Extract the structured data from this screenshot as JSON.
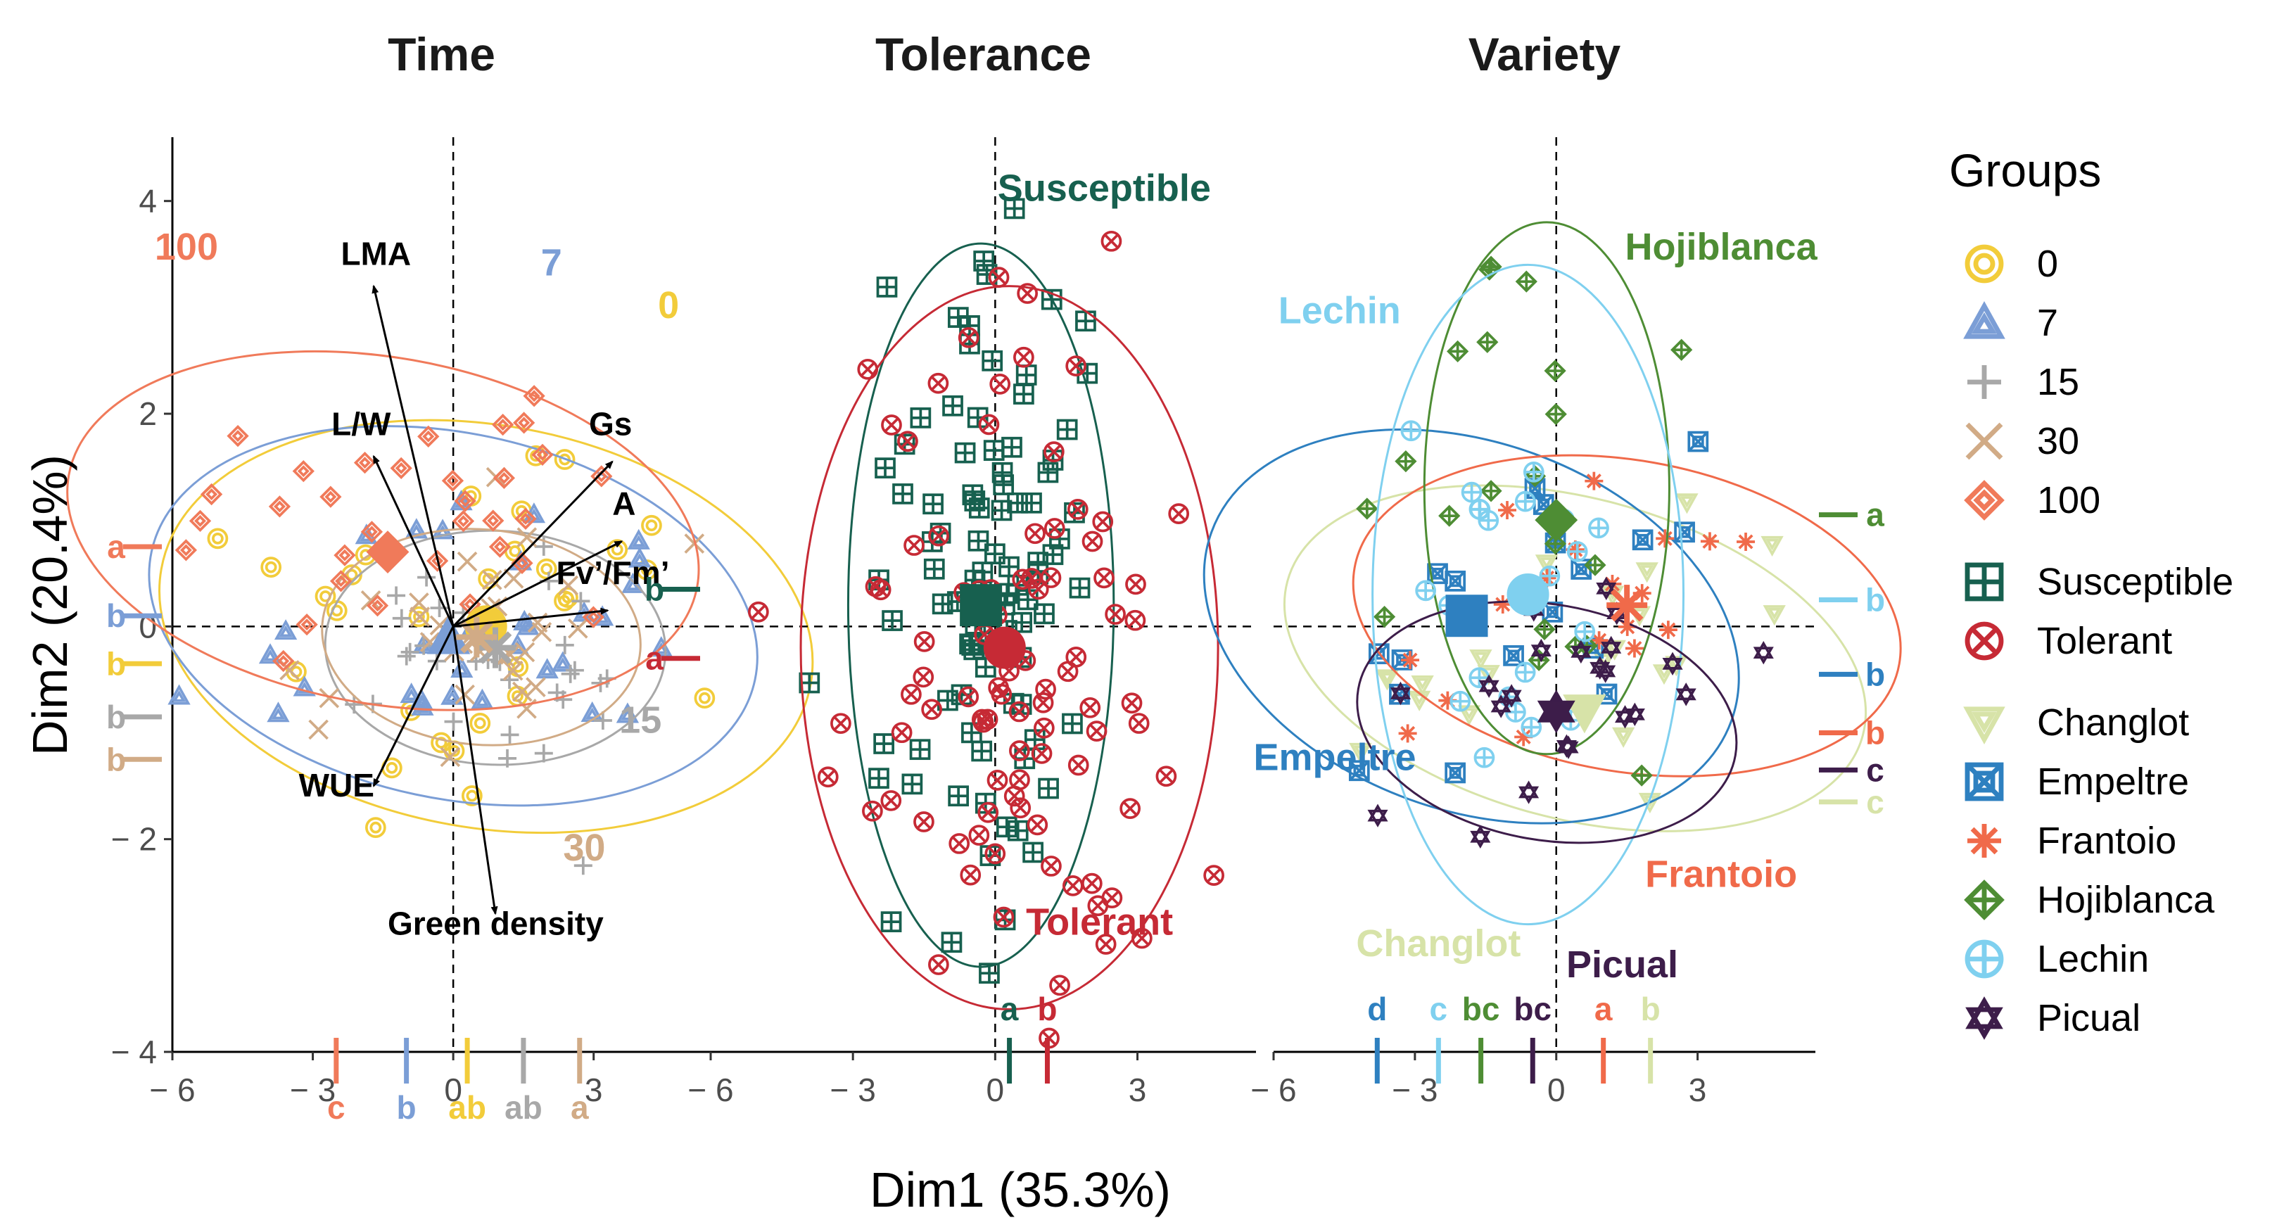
{
  "chart_data": {
    "type": "scatter",
    "title": "",
    "xlabel": "Dim1 (35.3%)",
    "ylabel": "Dim2 (20.4%)",
    "xlim": [
      -6,
      5.5
    ],
    "ylim": [
      -4,
      4.6
    ],
    "x_ticks": [
      {
        "label": "− 6",
        "v": -6
      },
      {
        "label": "− 3",
        "v": -3
      },
      {
        "label": "0",
        "v": 0
      },
      {
        "label": "3",
        "v": 3
      }
    ],
    "y_ticks": [
      {
        "label": "4",
        "v": 4
      },
      {
        "label": "2",
        "v": 2
      },
      {
        "label": "0",
        "v": 0
      },
      {
        "label": "− 2",
        "v": -2
      },
      {
        "label": "− 4",
        "v": -4
      }
    ],
    "panels": [
      {
        "id": "time",
        "title": "Time",
        "arrows": [
          {
            "label": "LMA",
            "x": -1.7,
            "y": 3.2,
            "lx": -2.4,
            "ly": 3.4
          },
          {
            "label": "L/W",
            "x": -1.7,
            "y": 1.6,
            "lx": -2.6,
            "ly": 1.8
          },
          {
            "label": "Gs",
            "x": 3.4,
            "y": 1.55,
            "lx": 2.9,
            "ly": 1.8
          },
          {
            "label": "A",
            "x": 3.6,
            "y": 0.8,
            "lx": 3.4,
            "ly": 1.05
          },
          {
            "label": "Fv’/Fm’",
            "x": 3.3,
            "y": 0.15,
            "lx": 2.2,
            "ly": 0.4
          },
          {
            "label": "WUE",
            "x": -1.7,
            "y": -1.5,
            "lx": -3.3,
            "ly": -1.6
          },
          {
            "label": "Green density",
            "x": 0.9,
            "y": -2.7,
            "lx": -1.4,
            "ly": -2.9
          }
        ],
        "groups": [
          {
            "name": "0",
            "label": "0",
            "color": "#f2cc3a",
            "cx": 0.7,
            "cy": 0.0,
            "rx": 4.3,
            "ry": 3.1,
            "rot": -80,
            "lx": 4.6,
            "ly": 2.9,
            "letter": "b",
            "centroid": [
              0.7,
              0.0
            ]
          },
          {
            "name": "7",
            "label": "7",
            "color": "#7b9ed6",
            "cx": 0.0,
            "cy": 0.1,
            "rx": 3.9,
            "ry": 2.9,
            "rot": -78,
            "lx": 2.1,
            "ly": 3.3,
            "letter": "b",
            "centroid": [
              -0.1,
              -0.1
            ]
          },
          {
            "name": "15",
            "label": "15",
            "color": "#a8a8a8",
            "cx": 0.9,
            "cy": -0.2,
            "rx": 2.5,
            "ry": 1.6,
            "rot": -88,
            "lx": 4.0,
            "ly": -1.0,
            "letter": "b",
            "centroid": [
              0.9,
              -0.2
            ]
          },
          {
            "name": "30",
            "label": "30",
            "color": "#d1ab86",
            "cx": 0.6,
            "cy": -0.1,
            "rx": 2.3,
            "ry": 1.5,
            "rot": -85,
            "lx": 2.8,
            "ly": -2.2,
            "letter": "b",
            "centroid": [
              0.5,
              -0.1
            ]
          },
          {
            "name": "100",
            "label": "100",
            "color": "#f07a5a",
            "cx": -1.5,
            "cy": 0.9,
            "rx": 3.7,
            "ry": 3.0,
            "rot": -80,
            "lx": -5.7,
            "ly": 3.45,
            "letter": "a",
            "centroid": [
              -1.4,
              0.7
            ]
          }
        ],
        "margin_y": [
          {
            "group": "100",
            "letter": "a",
            "y": 0.75
          },
          {
            "group": "7",
            "letter": "b",
            "y": 0.1
          },
          {
            "group": "0",
            "letter": "b",
            "y": -0.35
          },
          {
            "group": "15",
            "letter": "b",
            "y": -0.85
          },
          {
            "group": "30",
            "letter": "b",
            "y": -1.25
          }
        ],
        "margin_x": [
          {
            "group": "100",
            "letter": "c",
            "x": -2.5
          },
          {
            "group": "7",
            "letter": "b",
            "x": -1.0
          },
          {
            "group": "0",
            "letter": "ab",
            "x": 0.3
          },
          {
            "group": "15",
            "letter": "ab",
            "x": 1.5
          },
          {
            "group": "30",
            "letter": "a",
            "x": 2.7
          }
        ]
      },
      {
        "id": "tolerance",
        "title": "Tolerance",
        "groups": [
          {
            "name": "Susceptible",
            "label": "Susceptible",
            "color": "#17604f",
            "cx": -0.3,
            "cy": 0.2,
            "rx": 2.8,
            "ry": 3.4,
            "rot": 0,
            "lx": 2.3,
            "ly": 4.0,
            "letter": "b",
            "centroid": [
              -0.3,
              0.2
            ]
          },
          {
            "name": "Tolerant",
            "label": "Tolerant",
            "color": "#c62a35",
            "cx": 0.3,
            "cy": -0.2,
            "rx": 4.4,
            "ry": 3.4,
            "rot": 0,
            "lx": 2.2,
            "ly": -2.9,
            "letter": "a",
            "centroid": [
              0.2,
              -0.2
            ]
          }
        ],
        "margin_y": [
          {
            "group": "Susceptible",
            "letter": "b",
            "y": 0.35
          },
          {
            "group": "Tolerant",
            "letter": "a",
            "y": -0.3
          }
        ],
        "margin_x": [
          {
            "group": "Susceptible",
            "letter": "a",
            "x": 0.3
          },
          {
            "group": "Tolerant",
            "letter": "b",
            "x": 1.1
          }
        ]
      },
      {
        "id": "variety",
        "title": "Variety",
        "groups": [
          {
            "name": "Changlot",
            "label": "Changlot",
            "color": "#d7e3a8",
            "cx": 0.4,
            "cy": -0.3,
            "rx": 3.4,
            "ry": 2.8,
            "rot": -75,
            "lx": -2.5,
            "ly": -3.1,
            "letter": "c",
            "centroid": [
              0.6,
              -0.8
            ]
          },
          {
            "name": "Empeltre",
            "label": "Empeltre",
            "color": "#2e80c0",
            "cx": -1.8,
            "cy": 0.0,
            "rx": 3.9,
            "ry": 2.6,
            "rot": -70,
            "lx": -4.7,
            "ly": -1.35,
            "letter": "b",
            "centroid": [
              -1.9,
              0.1
            ]
          },
          {
            "name": "Frantoio",
            "label": "Frantoio",
            "color": "#f06a4a",
            "cx": 1.5,
            "cy": 0.1,
            "rx": 3.3,
            "ry": 2.6,
            "rot": -80,
            "lx": 3.5,
            "ly": -2.45,
            "letter": "b",
            "centroid": [
              1.5,
              0.2
            ]
          },
          {
            "name": "Hojiblanca",
            "label": "Hojiblanca",
            "color": "#4e8d34",
            "cx": -0.2,
            "cy": 1.3,
            "rx": 2.6,
            "ry": 2.5,
            "rot": 0,
            "lx": 3.5,
            "ly": 3.45,
            "letter": "a",
            "centroid": [
              0.0,
              1.0
            ]
          },
          {
            "name": "Lechin",
            "label": "Lechin",
            "color": "#7fd0ef",
            "cx": -0.6,
            "cy": 0.3,
            "rx": 3.3,
            "ry": 3.1,
            "rot": 0,
            "lx": -4.6,
            "ly": 2.85,
            "letter": "b",
            "centroid": [
              -0.6,
              0.3
            ]
          },
          {
            "name": "Picual",
            "label": "Picual",
            "color": "#3d1d4a",
            "cx": -0.2,
            "cy": -0.9,
            "rx": 2.5,
            "ry": 1.8,
            "rot": -80,
            "lx": 1.4,
            "ly": -3.3,
            "letter": "c",
            "centroid": [
              0.0,
              -0.8
            ]
          }
        ],
        "margin_y": [
          {
            "group": "Hojiblanca",
            "letter": "a",
            "y": 1.05
          },
          {
            "group": "Lechin",
            "letter": "b",
            "y": 0.25
          },
          {
            "group": "Empeltre",
            "letter": "b",
            "y": -0.45
          },
          {
            "group": "Frantoio",
            "letter": "b",
            "y": -1.0
          },
          {
            "group": "Picual",
            "letter": "c",
            "y": -1.35
          },
          {
            "group": "Changlot",
            "letter": "c",
            "y": -1.65
          }
        ],
        "margin_x": [
          {
            "group": "Empeltre",
            "letter": "d",
            "x": -3.8
          },
          {
            "group": "Lechin",
            "letter": "c",
            "x": -2.5
          },
          {
            "group": "Hojiblanca",
            "letter": "bc",
            "x": -1.6
          },
          {
            "group": "Picual",
            "letter": "bc",
            "x": -0.5
          },
          {
            "group": "Frantoio",
            "letter": "a",
            "x": 1.0
          },
          {
            "group": "Changlot",
            "letter": "b",
            "x": 2.0
          }
        ]
      }
    ],
    "legend": {
      "title": "Groups",
      "placement": "right",
      "items": [
        {
          "label": "0",
          "shape": "double-circle",
          "color": "#f2cc3a"
        },
        {
          "label": "7",
          "shape": "double-triangle",
          "color": "#7b9ed6"
        },
        {
          "label": "15",
          "shape": "plus",
          "color": "#a8a8a8"
        },
        {
          "label": "30",
          "shape": "cross",
          "color": "#d1ab86"
        },
        {
          "label": "100",
          "shape": "double-diamond",
          "color": "#f07a5a"
        },
        {
          "label": "Susceptible",
          "shape": "boxed-plus",
          "color": "#17604f"
        },
        {
          "label": "Tolerant",
          "shape": "circle-x",
          "color": "#c62a35"
        },
        {
          "label": "Changlot",
          "shape": "double-triangle-down",
          "color": "#d7e3a8"
        },
        {
          "label": "Empeltre",
          "shape": "boxed-square",
          "color": "#2e80c0"
        },
        {
          "label": "Frantoio",
          "shape": "asterisk",
          "color": "#f06a4a"
        },
        {
          "label": "Hojiblanca",
          "shape": "diamond-plus",
          "color": "#4e8d34"
        },
        {
          "label": "Lechin",
          "shape": "circle-plus",
          "color": "#7fd0ef"
        },
        {
          "label": "Picual",
          "shape": "star-of-david",
          "color": "#3d1d4a"
        }
      ]
    }
  }
}
